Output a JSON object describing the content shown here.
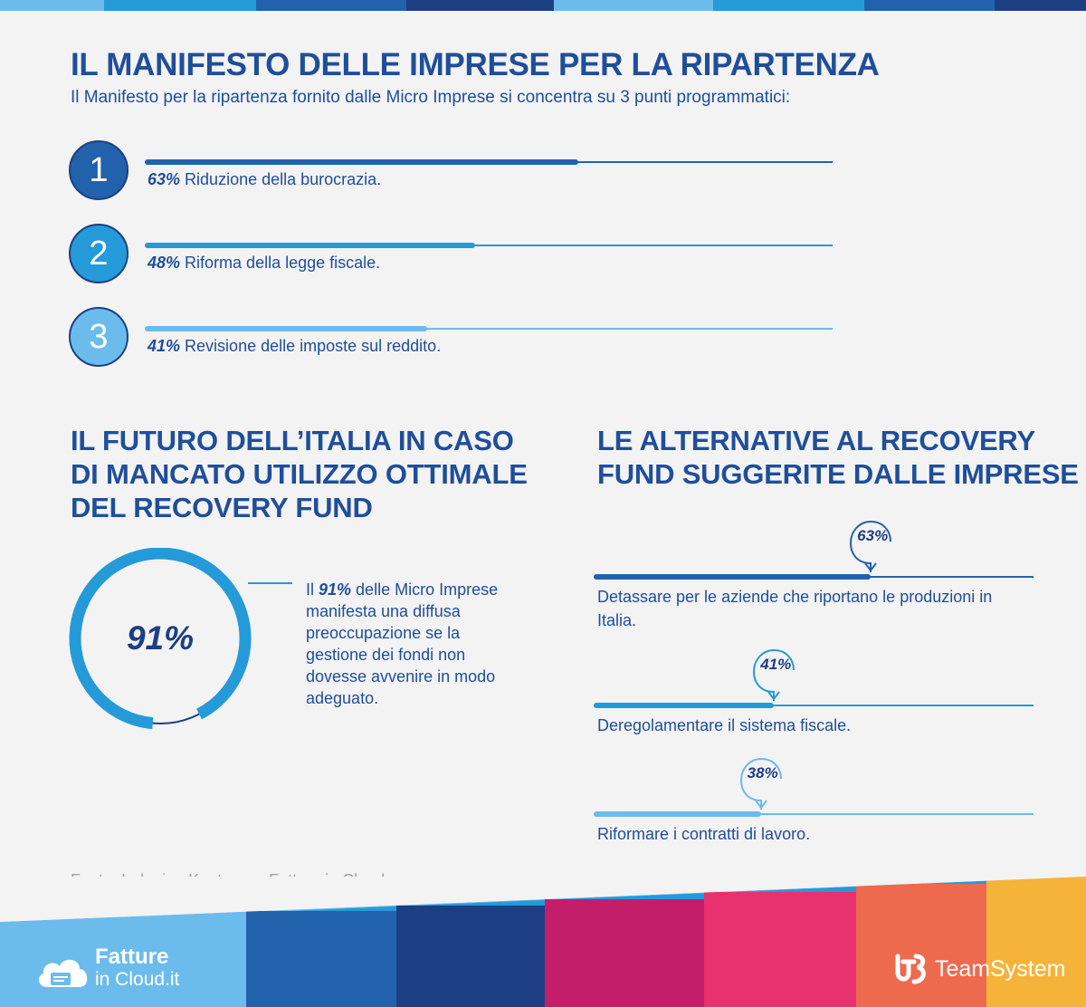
{
  "colors": {
    "dark_blue": "#1c3f84",
    "blue": "#2a5fb0",
    "mid_blue": "#259ad9",
    "light_blue": "#6bbcec",
    "text_blue": "#1f4e9a",
    "band": [
      "#6bbcec",
      "#259ad9",
      "#2262ad",
      "#1c3f84",
      "#c41e6b",
      "#e8316f",
      "#ee6a4f",
      "#f6b33a"
    ]
  },
  "header": {
    "title": "IL MANIFESTO DELLE IMPRESE PER LA RIPARTENZA",
    "subtitle": "Il Manifesto per la ripartenza fornito dalle Micro Imprese si concentra su 3 punti programmatici:"
  },
  "chart_data": [
    {
      "type": "bar",
      "title": "IL MANIFESTO DELLE IMPRESE PER LA RIPARTENZA",
      "xlim": [
        0,
        100
      ],
      "unit": "%",
      "items": [
        {
          "number": "1",
          "value": 63,
          "label_value": "63%",
          "label": "Riduzione della burocrazia.",
          "color": "#2262ad"
        },
        {
          "number": "2",
          "value": 48,
          "label_value": "48%",
          "label": "Riforma della legge fiscale.",
          "color": "#259ad9"
        },
        {
          "number": "3",
          "value": 41,
          "label_value": "41%",
          "label": "Revisione delle imposte sul reddito.",
          "color": "#6bbcec"
        }
      ]
    },
    {
      "type": "pie",
      "title": "IL FUTURO DELL’ITALIA IN CASO DI MANCATO UTILIZZO OTTIMALE DEL RECOVERY FUND",
      "value": 91,
      "label_value": "91%",
      "description_pre": "Il ",
      "description_bold": "91%",
      "description_post": " delle Micro Imprese manifesta una diffusa preoccupazione se la gestione dei fondi non dovesse avvenire in modo adeguato."
    },
    {
      "type": "bar",
      "title": "LE ALTERNATIVE AL RECOVERY FUND SUGGERITE DALLE IMPRESE",
      "xlim": [
        0,
        100
      ],
      "unit": "%",
      "items": [
        {
          "value": 63,
          "label_value": "63%",
          "label": "Detassare per le aziende che riportano le produzioni in Italia.",
          "color": "#2262ad"
        },
        {
          "value": 41,
          "label_value": "41%",
          "label": "Deregolamentare il sistema fiscale.",
          "color": "#259ad9"
        },
        {
          "value": 38,
          "label_value": "38%",
          "label": "Riformare i contratti di lavoro.",
          "color": "#6bbcec"
        }
      ]
    }
  ],
  "section2": {
    "title_lines": [
      "IL FUTURO DELL’ITALIA IN CASO",
      "DI MANCATO UTILIZZO OTTIMALE",
      "DEL RECOVERY FUND"
    ]
  },
  "section3": {
    "title_lines": [
      "LE ALTERNATIVE AL RECOVERY",
      "FUND SUGGERITE DALLE IMPRESE"
    ]
  },
  "source": "Fonte: Indagine Kantar per Fatture in Cloud",
  "logos": {
    "left_line1": "Fatture",
    "left_line2": "in Cloud.it",
    "right": "TeamSystem",
    "right_icon": "ts-logo-icon"
  }
}
